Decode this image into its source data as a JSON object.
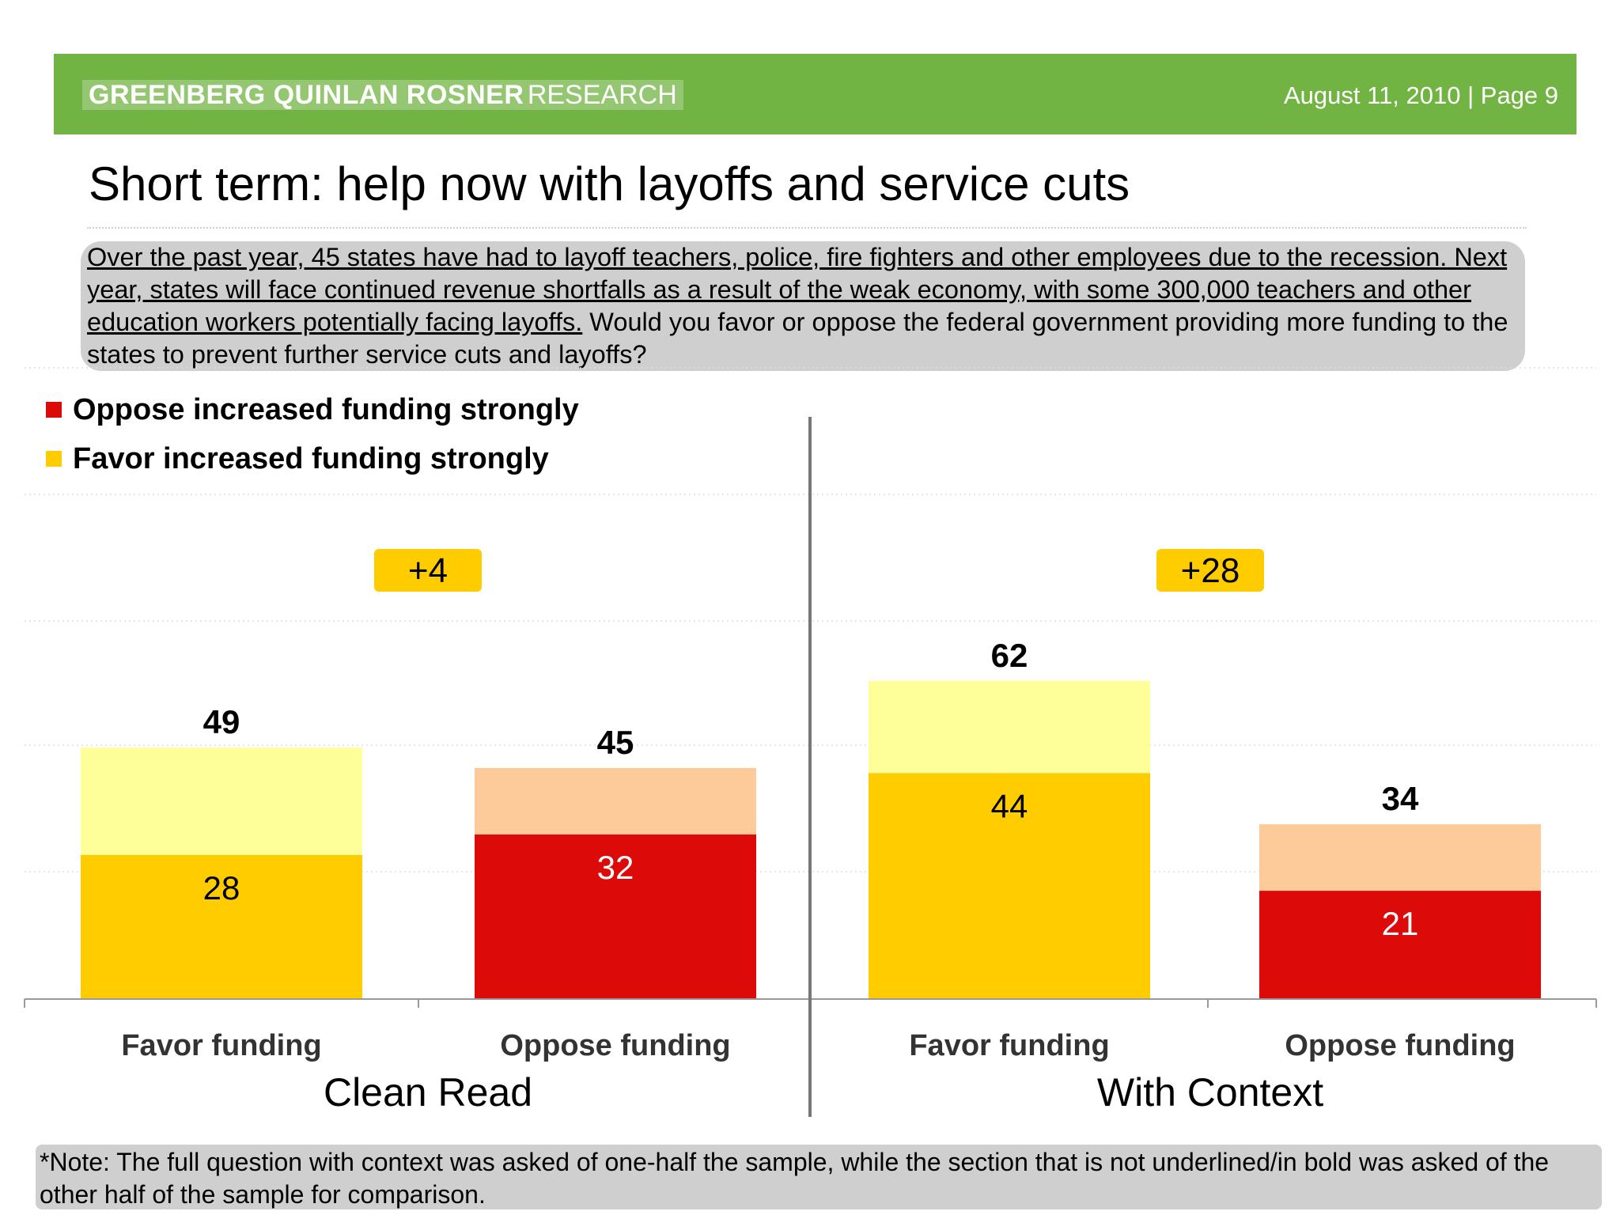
{
  "header": {
    "brand_bold": "GREENBERG QUINLAN ROSNER",
    "brand_light": "RESEARCH",
    "date_page": "August 11, 2010  |  Page 9"
  },
  "page_title": "Short term: help now with layoffs and service cuts",
  "question": {
    "underlined": "Over the past year, 45 states have had to layoff teachers, police, fire fighters and other employees due to the recession. Next year, states will face continued revenue shortfalls as a result of the weak economy, with some 300,000 teachers and other education workers potentially facing layoffs.",
    "plain": " Would you favor or oppose the federal government providing more funding to the states to prevent further service cuts and layoffs?"
  },
  "note": "*Note: The full question with context was asked of one-half the sample, while the section that is not underlined/in bold was asked of the other half of the sample for comparison.",
  "colors": {
    "favor_strong": "#ffcc00",
    "favor_total": "#ffff99",
    "oppose_strong": "#dd0a0a",
    "oppose_total": "#fccb99",
    "header_green": "#72b443",
    "badge": "#ffcc00"
  },
  "chart_data": {
    "type": "bar",
    "stacked": true,
    "ylim": [
      0,
      100
    ],
    "legend": [
      {
        "label": "Oppose increased funding strongly",
        "color": "#dd0a0a"
      },
      {
        "label": "Favor increased funding strongly",
        "color": "#ffcc00"
      }
    ],
    "groups": [
      {
        "label": "Clean Read",
        "difference_label": "+4",
        "bars": [
          {
            "category": "Favor funding",
            "total": 49,
            "strong": 28,
            "kind": "favor"
          },
          {
            "category": "Oppose funding",
            "total": 45,
            "strong": 32,
            "kind": "oppose"
          }
        ]
      },
      {
        "label": "With Context",
        "difference_label": "+28",
        "bars": [
          {
            "category": "Favor funding",
            "total": 62,
            "strong": 44,
            "kind": "favor"
          },
          {
            "category": "Oppose funding",
            "total": 34,
            "strong": 21,
            "kind": "oppose"
          }
        ]
      }
    ]
  }
}
